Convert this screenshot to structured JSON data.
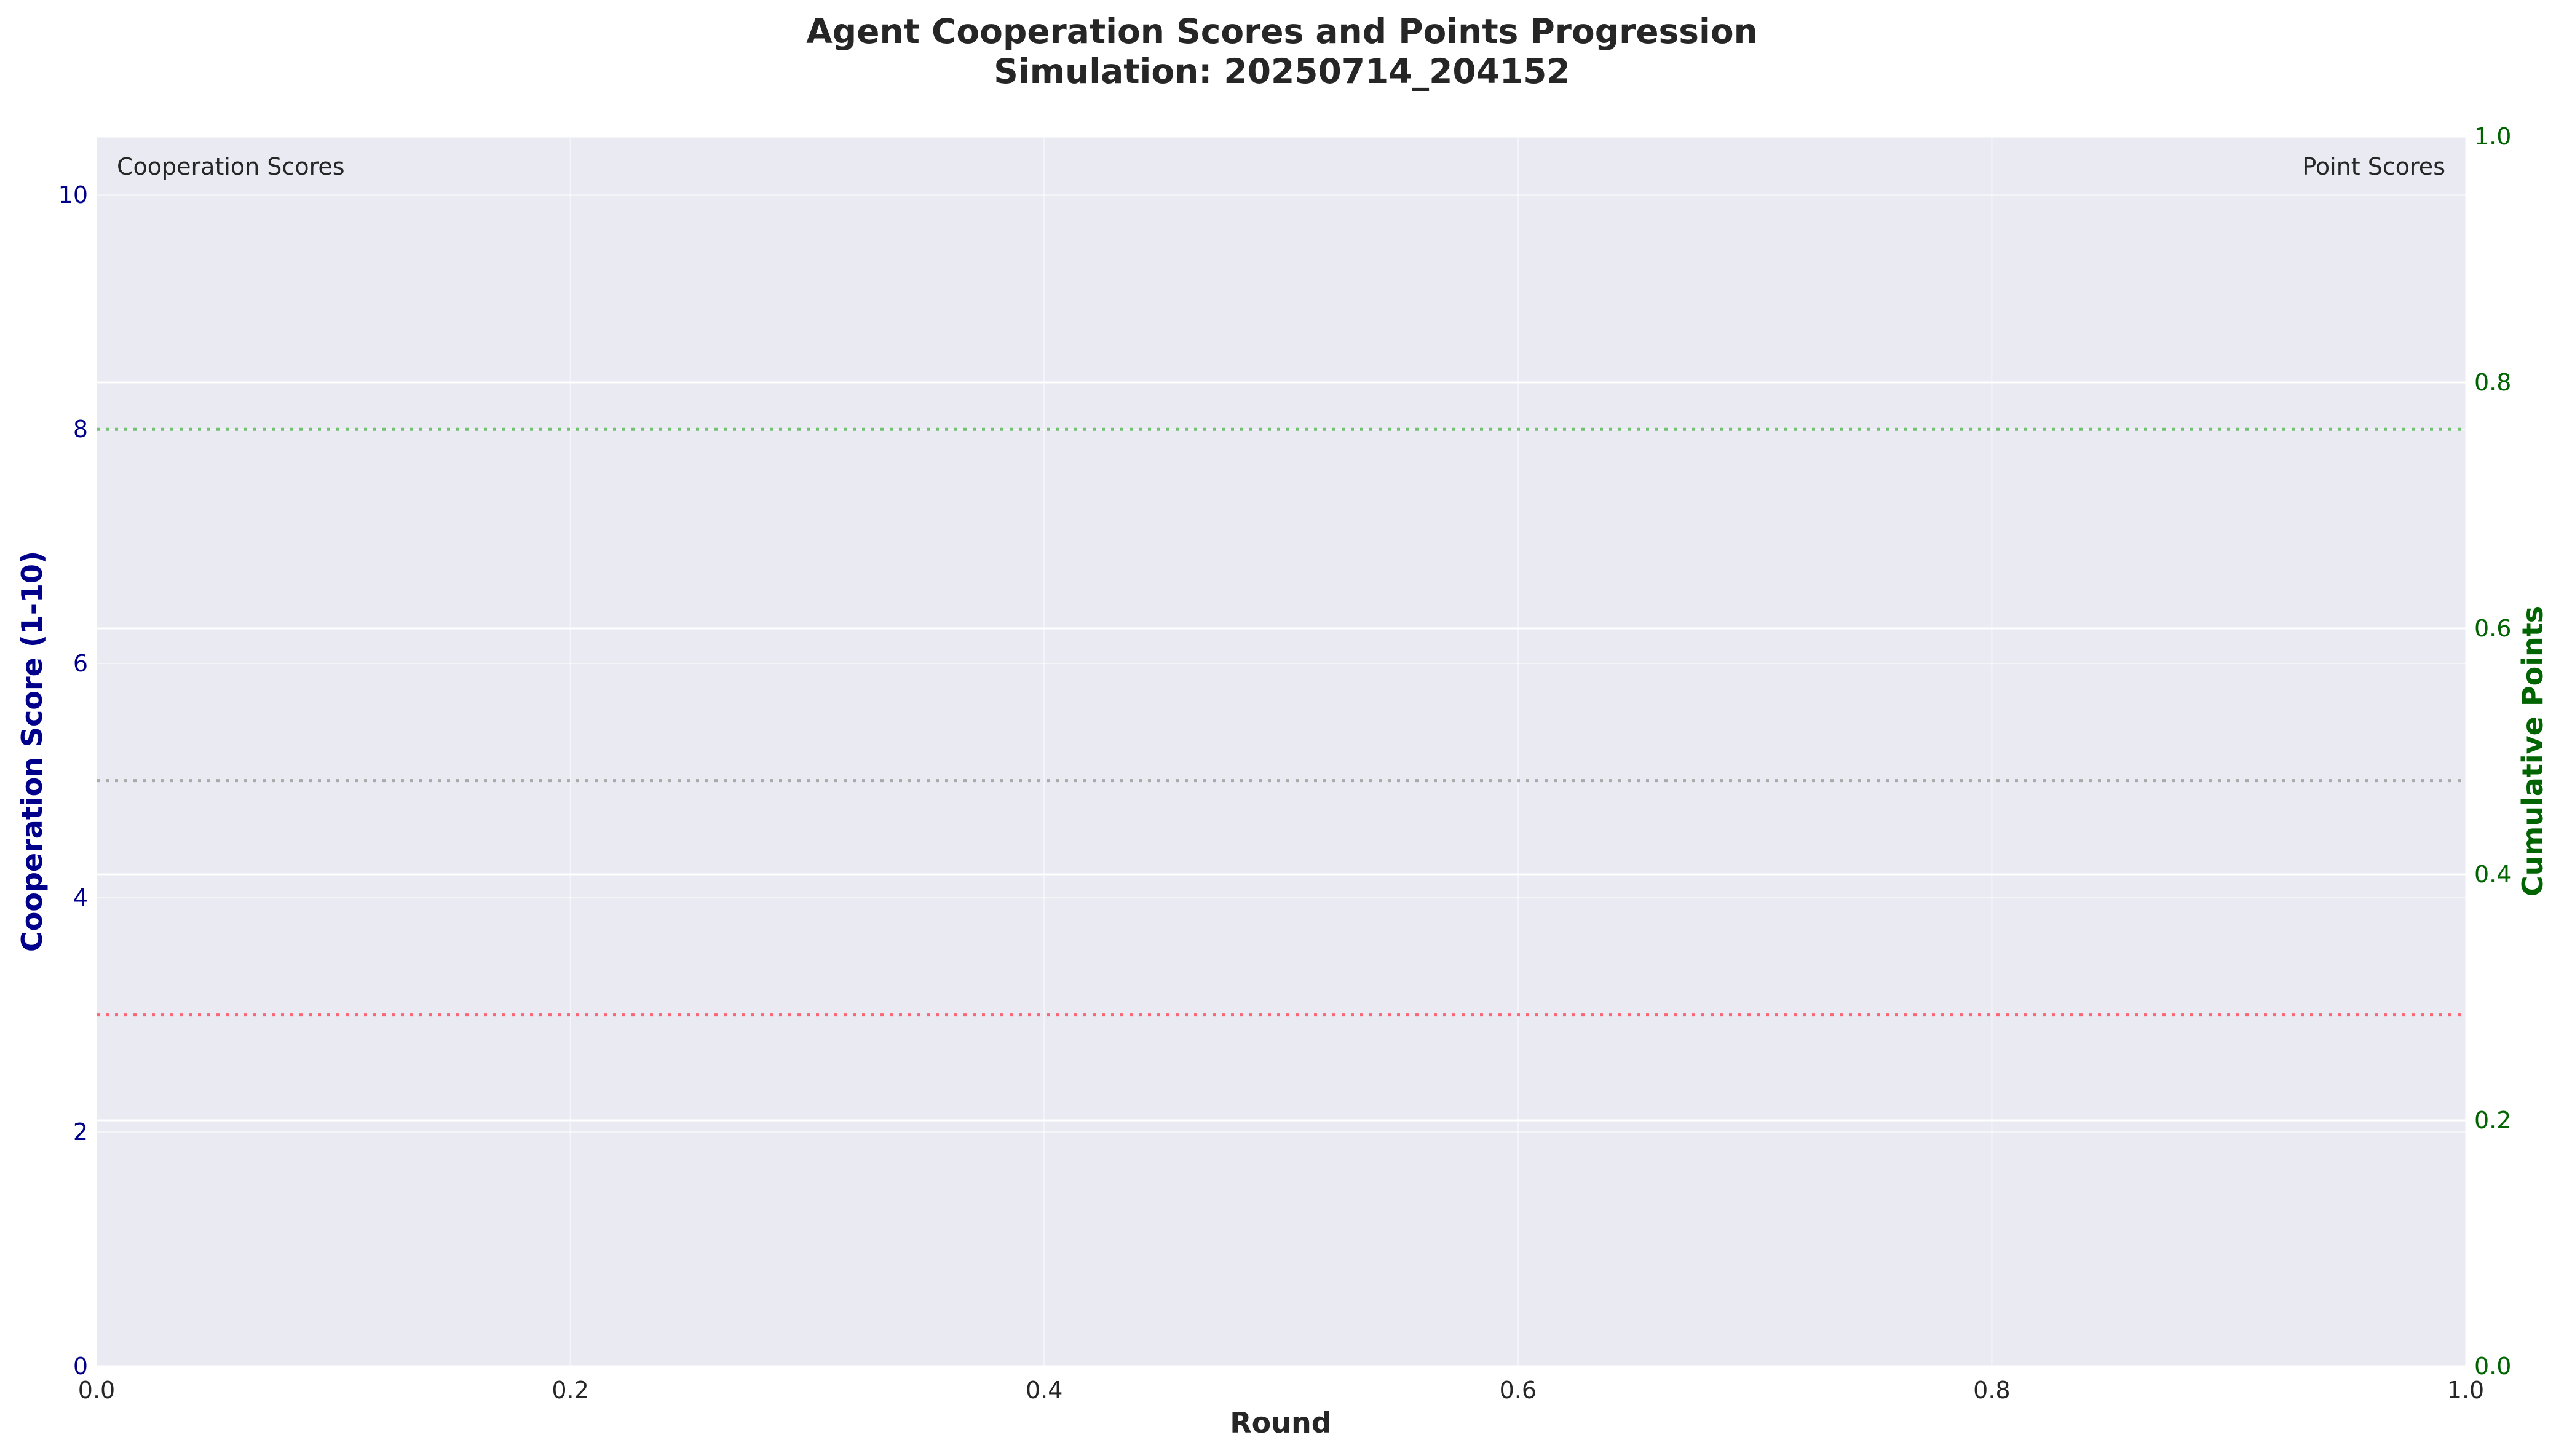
{
  "chart_data": {
    "type": "line",
    "title_line1": "Agent Cooperation Scores and Points Progression",
    "title_line2": "Simulation: 20250714_204152",
    "xlabel": "Round",
    "ylabel_left": "Cooperation Score (1-10)",
    "ylabel_right": "Cumulative Points",
    "xlim": [
      0.0,
      1.0
    ],
    "ylim_left": [
      0,
      10.5
    ],
    "ylim_right": [
      0.0,
      1.0
    ],
    "x_ticks": [
      "0.0",
      "0.2",
      "0.4",
      "0.6",
      "0.8",
      "1.0"
    ],
    "x_tick_values": [
      0.0,
      0.2,
      0.4,
      0.6,
      0.8,
      1.0
    ],
    "y_left_ticks": [
      "0",
      "2",
      "4",
      "6",
      "8",
      "10"
    ],
    "y_left_tick_values": [
      0,
      2,
      4,
      6,
      8,
      10
    ],
    "y_right_ticks": [
      "0.0",
      "0.2",
      "0.4",
      "0.6",
      "0.8",
      "1.0"
    ],
    "y_right_tick_values": [
      0.0,
      0.2,
      0.4,
      0.6,
      0.8,
      1.0
    ],
    "inset_left": "Cooperation Scores",
    "inset_right": "Point Scores",
    "reference_lines": [
      {
        "axis": "left",
        "y": 8,
        "color": "#5cb85c",
        "style": "dotted"
      },
      {
        "axis": "left",
        "y": 5,
        "color": "#9e9e9e",
        "style": "dotted"
      },
      {
        "axis": "left",
        "y": 3,
        "color": "#ff4d5e",
        "style": "dotted"
      }
    ],
    "series": [],
    "grid": true,
    "colors": {
      "plot_background": "#eaeaf2",
      "grid": "#ffffff",
      "left_axis": "#00008b",
      "right_axis": "#006400"
    }
  }
}
